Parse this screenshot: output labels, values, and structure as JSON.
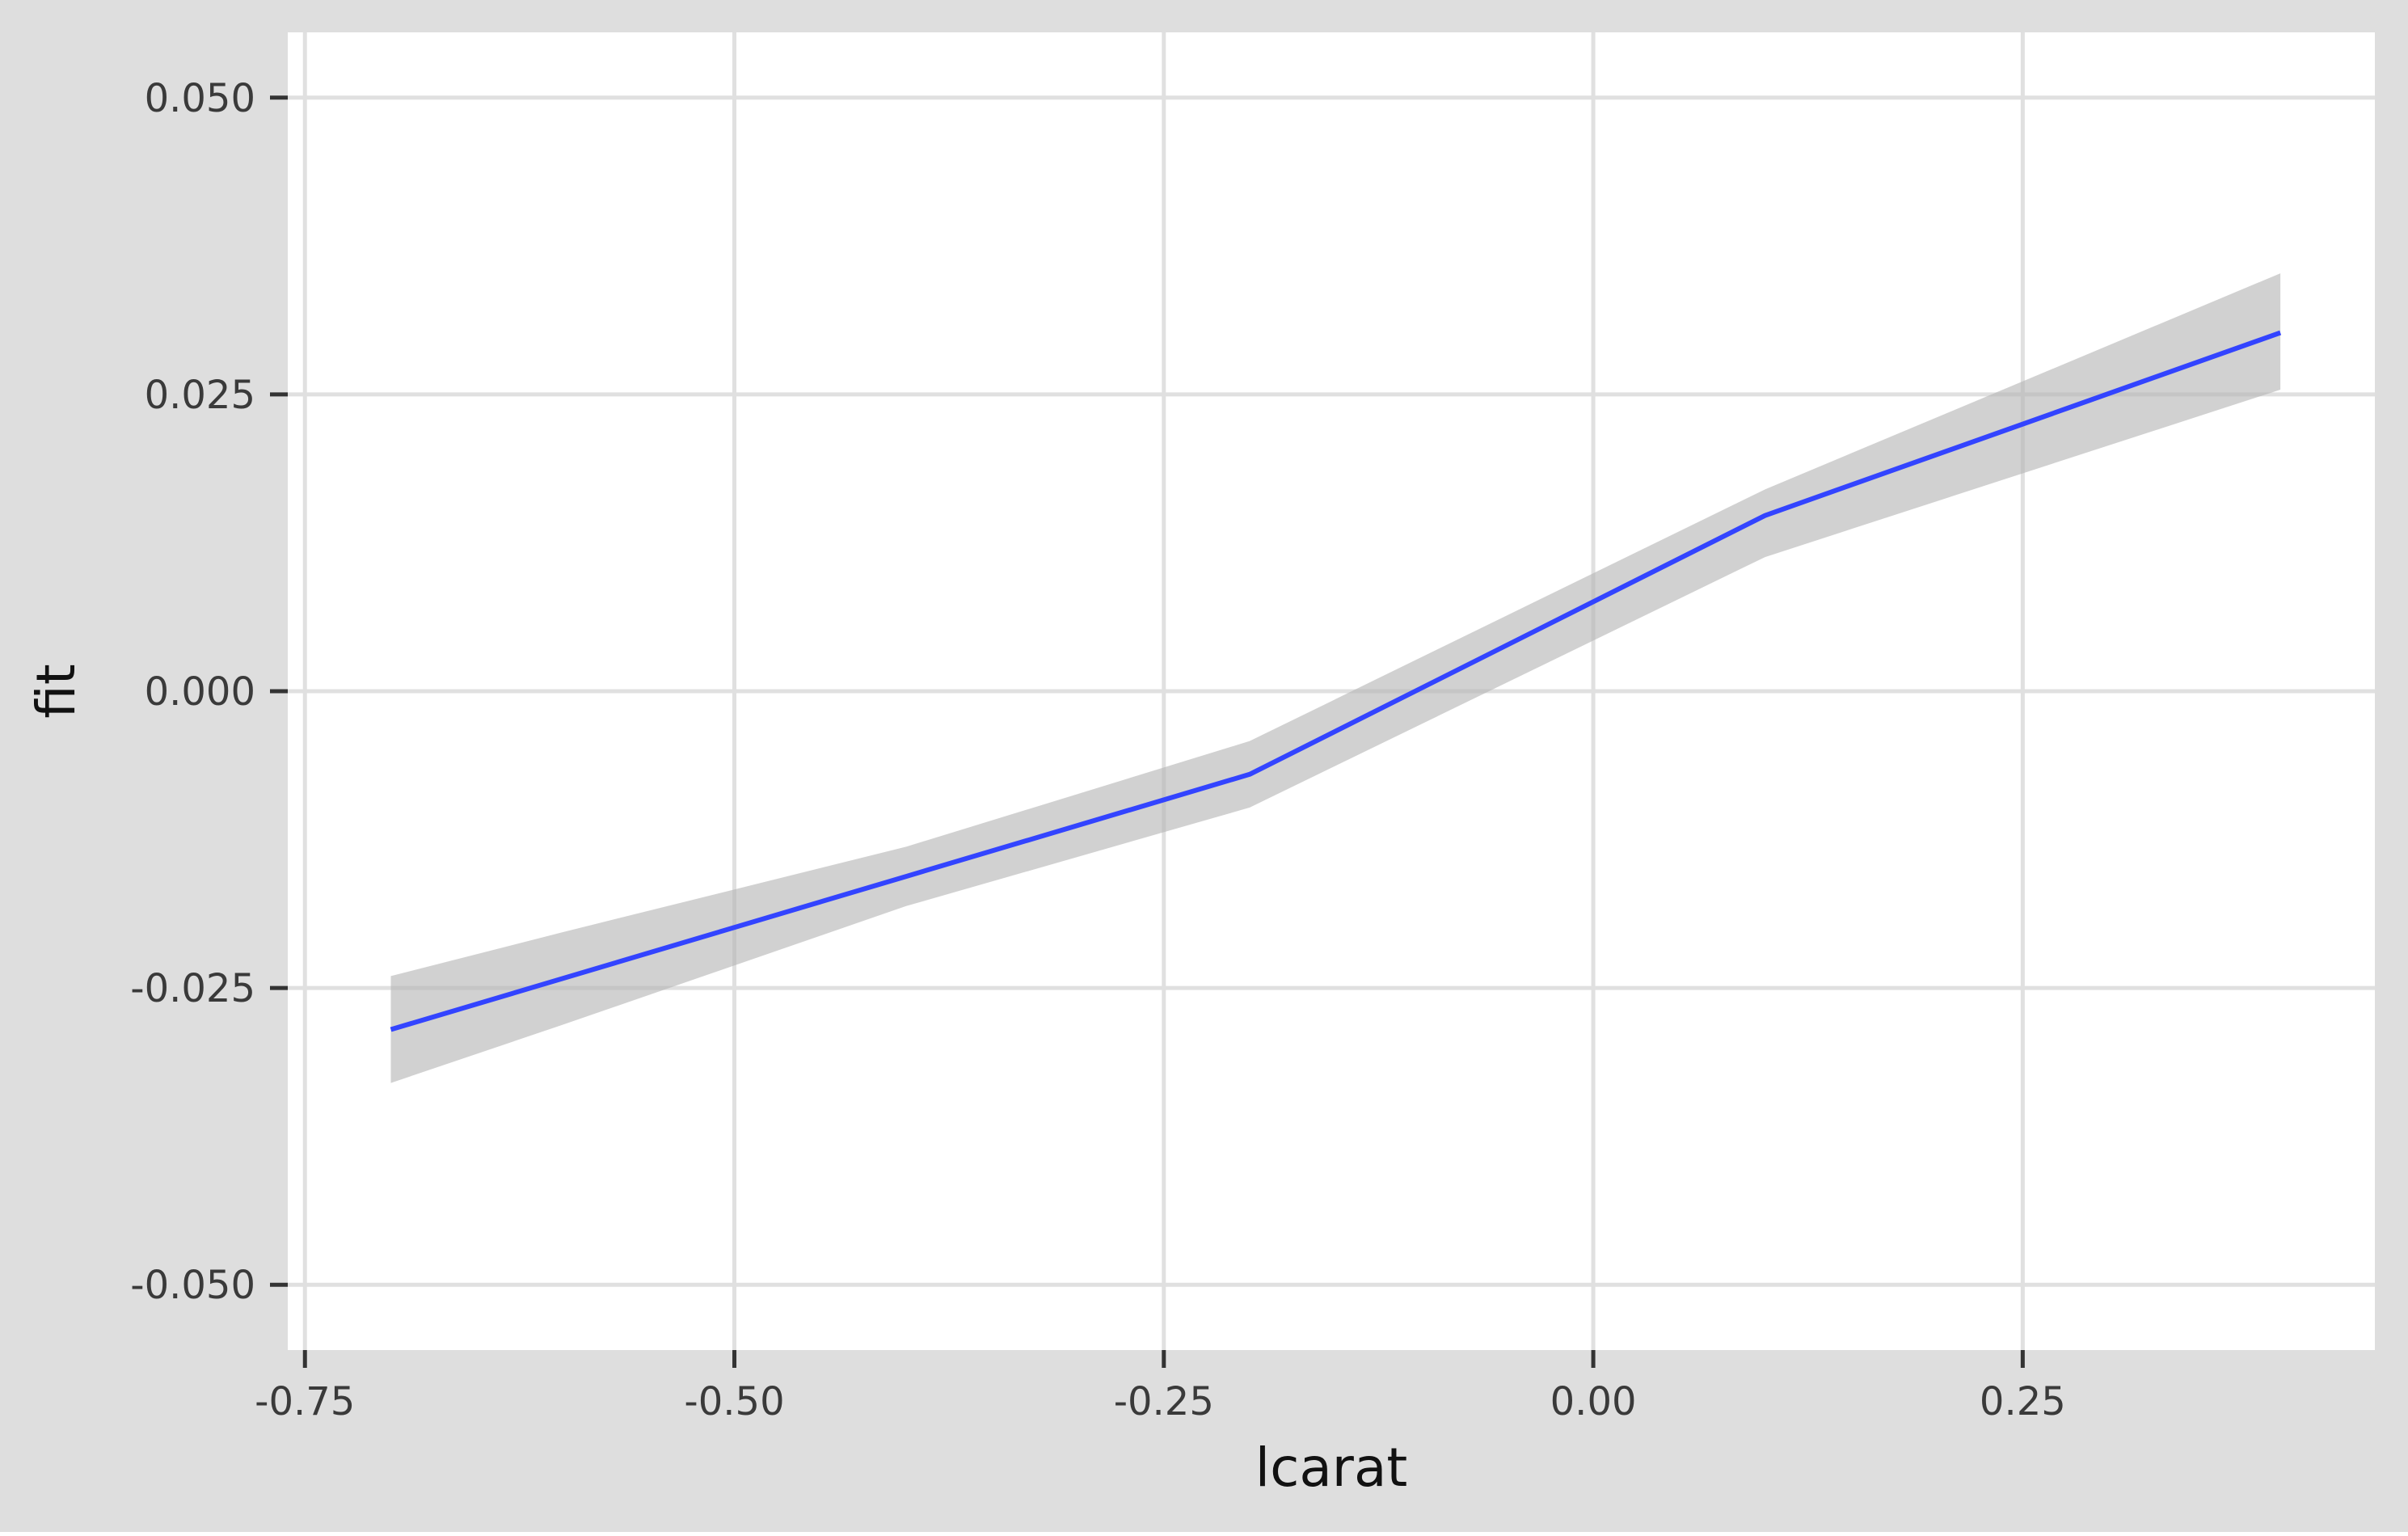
{
  "chart_data": {
    "type": "line",
    "title": "",
    "xlabel": "lcarat",
    "ylabel": "fit",
    "xlim": [
      -0.76,
      0.455
    ],
    "ylim": [
      -0.0555,
      0.0555
    ],
    "x_ticks": [
      -0.75,
      -0.5,
      -0.25,
      0.0,
      0.25
    ],
    "x_tick_labels": [
      "-0.75",
      "-0.50",
      "-0.25",
      "0.00",
      "0.25"
    ],
    "y_ticks": [
      -0.05,
      -0.025,
      0.0,
      0.025,
      0.05
    ],
    "y_tick_labels": [
      "-0.050",
      "-0.025",
      "0.000",
      "0.025",
      "0.050"
    ],
    "grid": true,
    "legend": "none",
    "series": [
      {
        "line_color": "#3344ff",
        "band_color": "#b4b4b4",
        "x": [
          -0.7,
          -0.6,
          -0.4,
          -0.2,
          0.1,
          0.4
        ],
        "y": [
          -0.0285,
          -0.0242,
          -0.0156,
          -0.007,
          0.0148,
          0.0302
        ],
        "ci_lower": [
          -0.033,
          -0.0281,
          -0.0181,
          -0.0098,
          0.0113,
          0.0254
        ],
        "ci_upper": [
          -0.024,
          -0.0203,
          -0.0131,
          -0.0042,
          0.017,
          0.0352
        ]
      }
    ],
    "colors": {
      "panel_background": "#ffffff",
      "plot_background": "#dedede",
      "grid": "#e0e0e0",
      "axis": "#333333"
    }
  }
}
